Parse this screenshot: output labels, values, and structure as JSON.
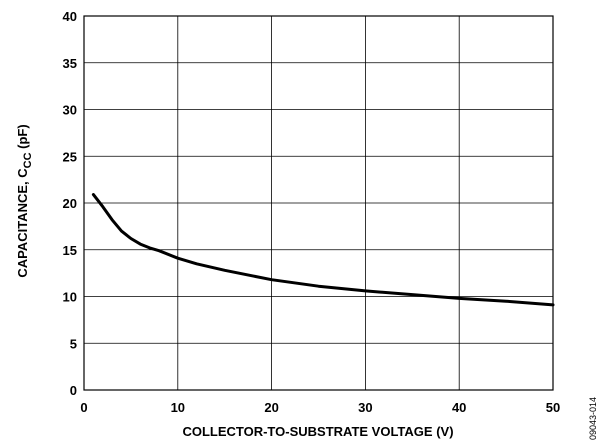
{
  "chart_data": {
    "type": "line",
    "xlabel": "COLLECTOR-TO-SUBSTRATE VOLTAGE (V)",
    "ylabel_main": "CAPACITANCE, C",
    "ylabel_sub": "CC",
    "ylabel_unit": " (pF)",
    "xlim": [
      0,
      50
    ],
    "ylim": [
      0,
      40
    ],
    "x_ticks": [
      0,
      10,
      20,
      30,
      40,
      50
    ],
    "y_ticks": [
      0,
      5,
      10,
      15,
      20,
      25,
      30,
      35,
      40
    ],
    "grid": true,
    "figure_id": "09043-014",
    "line_color": "#000000",
    "series": [
      {
        "x": [
          1,
          2,
          3,
          4,
          5,
          6,
          7,
          8,
          10,
          12,
          15,
          20,
          25,
          30,
          35,
          40,
          45,
          50
        ],
        "y": [
          20.9,
          19.6,
          18.2,
          17.0,
          16.2,
          15.6,
          15.2,
          14.9,
          14.1,
          13.5,
          12.8,
          11.8,
          11.1,
          10.6,
          10.2,
          9.8,
          9.5,
          9.1
        ]
      }
    ]
  }
}
